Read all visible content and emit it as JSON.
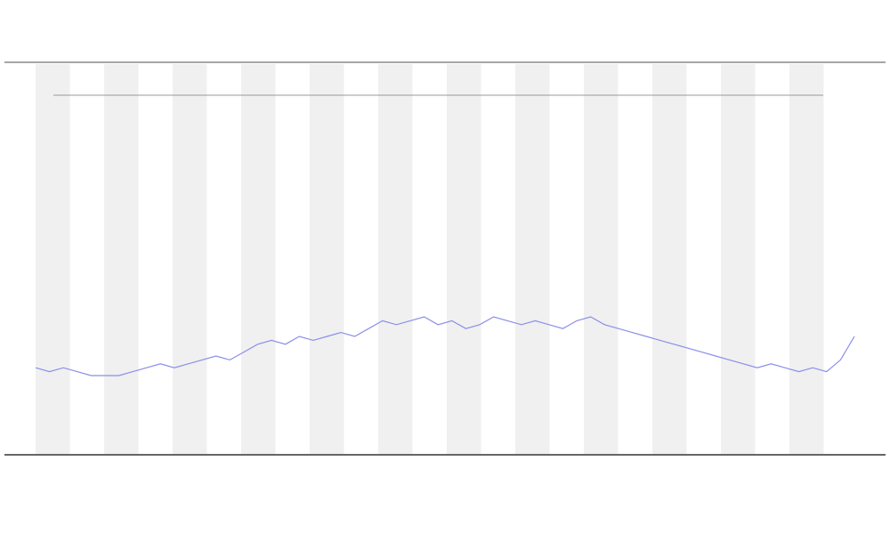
{
  "chart_data": {
    "type": "line",
    "series": [
      {
        "color": "#8a8fe8",
        "values": [
          22,
          21,
          22,
          21,
          20,
          20,
          20,
          21,
          22,
          23,
          22,
          23,
          24,
          25,
          24,
          26,
          28,
          29,
          28,
          30,
          29,
          30,
          31,
          30,
          32,
          34,
          33,
          34,
          35,
          33,
          34,
          32,
          33,
          35,
          34,
          33,
          34,
          33,
          32,
          34,
          35,
          33,
          32,
          31,
          30,
          29,
          28,
          27,
          26,
          25,
          24,
          23,
          22,
          23,
          22,
          21,
          22,
          21,
          24,
          30
        ]
      }
    ],
    "ylim": [
      0,
      100
    ]
  }
}
